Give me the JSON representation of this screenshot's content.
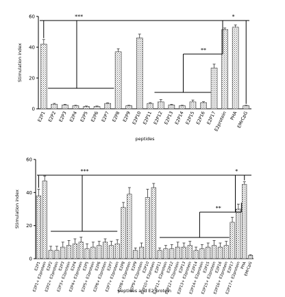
{
  "chart_data": [
    {
      "type": "bar",
      "title": "",
      "xlabel": "peptides",
      "ylabel": "Stimulation index",
      "ylim": [
        0,
        60
      ],
      "yticks": [
        "0",
        "20",
        "40",
        "60"
      ],
      "grid": false,
      "legend": "none",
      "categories": [
        "E2P1",
        "E2P2",
        "E2P3",
        "E2P4",
        "E2P5",
        "E2P6",
        "E2P7",
        "E2P8",
        "E2P9",
        "E2P10",
        "E2P11",
        "E2P12",
        "E2P13",
        "E2P14",
        "E2P15",
        "E2P16",
        "E2P17",
        "E2protein",
        "PHA",
        "EMrCpG"
      ],
      "values": [
        42,
        3,
        2.5,
        2,
        1.5,
        1.5,
        3.5,
        37,
        2,
        46,
        3.5,
        4.5,
        2.5,
        2,
        4.5,
        4,
        26.5,
        51.5,
        53,
        2
      ],
      "errors": [
        3,
        0.5,
        0.4,
        0.3,
        0.3,
        0.3,
        0.4,
        2,
        0.3,
        2.5,
        0.5,
        1.5,
        0.4,
        0.3,
        1.2,
        0.6,
        2.5,
        1,
        1.5,
        0.3
      ],
      "annotations": [
        "***",
        "*",
        "**"
      ]
    },
    {
      "type": "bar",
      "title": "",
      "xlabel": "peptides and E2 protein",
      "ylabel": "Stimulation index",
      "ylim": [
        0,
        60
      ],
      "yticks": [
        "0",
        "20",
        "40",
        "60"
      ],
      "grid": false,
      "legend": "none",
      "categories": [
        "E2P1",
        "E2P1+E2protein",
        "E2P2",
        "E2P2+E2protein",
        "E2P3",
        "E2P3+E2protein",
        "E2P4",
        "E2P4+E2protein",
        "E2P5",
        "E2P5+E2protein",
        "E2P6",
        "E2P6+E2protein",
        "E2P7",
        "E2P7+E2protein",
        "E2P8",
        "E2P8+E2protein",
        "E2P9",
        "E2P9+E2protein",
        "E2P10",
        "E2P10+E2protein",
        "E2P11",
        "E2P11+E2protein",
        "E2P12",
        "E2P12+E2protein",
        "E2P13",
        "E2P13+E2protein",
        "E2P14",
        "E2P14+E2protein",
        "E2P15",
        "E2P15+E2protein",
        "E2P16",
        "E2P16+E2protein",
        "E2P17",
        "E2P17+E2protein",
        "PHA",
        "EMrCpG"
      ],
      "tick_labels": [
        "E2P1",
        "E2P1+ E2protein",
        "E2P2",
        "E2P2+ E2protein",
        "E2P3",
        "E2P3+ E2protein",
        "E2P4",
        "E2P4+ E2protein",
        "E2P5",
        "E2P5+ E2protein",
        "E2P6",
        "E2P6+ E2protein",
        "E2P7",
        "E2P7+ E2protein",
        "E2P8",
        "E2P8+ E2protein",
        "E2P9",
        "E2P9+ E2protein",
        "E2P10",
        "E2P10+ E2protein",
        "E2P11",
        "E2P11+ E2protein",
        "E2P12",
        "E2P12+ E2protein",
        "E2P13",
        "E2P13+ E2protein",
        "E2P14",
        "E2P14+ E2protein",
        "E2P15",
        "E2P15+ E2protein",
        "E2P16",
        "E2P16+ E2protein",
        "E2P17",
        "E2P17+ E2protein",
        "PHA",
        "EMrCpG"
      ],
      "values": [
        38,
        47,
        5,
        5,
        7,
        8,
        9,
        10,
        6,
        7,
        8,
        10,
        8,
        9,
        31,
        39,
        5,
        7,
        37,
        43,
        5,
        6,
        6,
        7,
        7,
        8,
        5,
        6,
        7,
        8,
        7,
        8,
        22,
        30,
        45,
        2
      ],
      "errors": [
        4,
        3,
        2.5,
        2.5,
        3,
        3,
        3,
        3,
        3,
        3,
        2.5,
        2,
        2.5,
        2.5,
        3,
        4,
        1.5,
        2.5,
        5,
        2.5,
        1.5,
        2,
        2.5,
        3,
        2.5,
        2.5,
        2,
        2.5,
        2.5,
        3,
        2.5,
        2.5,
        3,
        3,
        1.5,
        0.4
      ],
      "annotations": [
        "***",
        "*",
        "**"
      ]
    }
  ]
}
